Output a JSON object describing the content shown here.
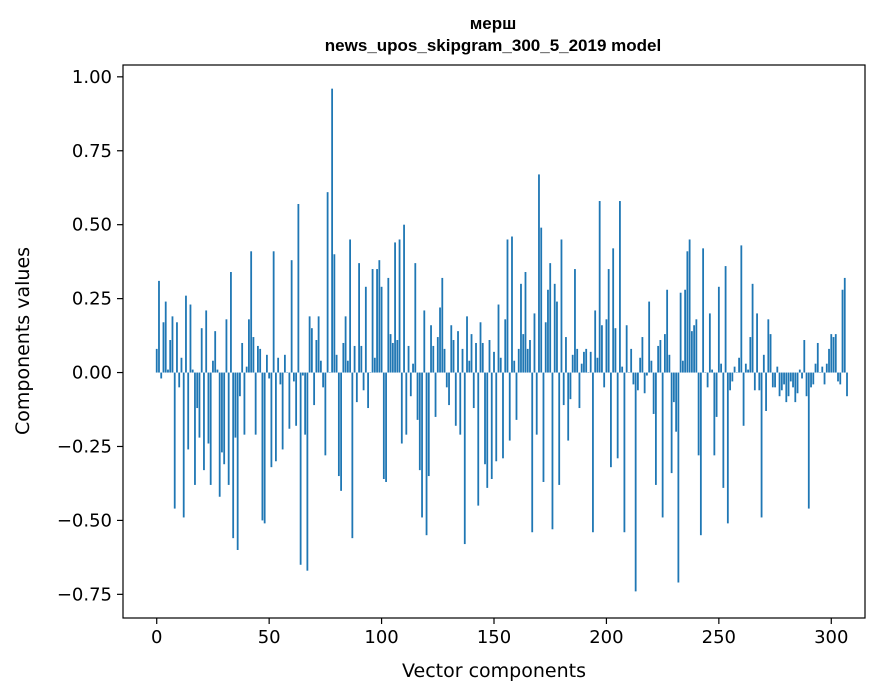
{
  "chart_data": {
    "type": "bar",
    "title": "мерш",
    "subtitle": "news_upos_skipgram_300_5_2019 model",
    "xlabel": "Vector components",
    "ylabel": "Components values",
    "xlim": [
      -15,
      315
    ],
    "ylim": [
      -0.83,
      1.04
    ],
    "xticks": [
      0,
      50,
      100,
      150,
      200,
      250,
      300
    ],
    "xtick_labels": [
      "0",
      "50",
      "100",
      "150",
      "200",
      "250",
      "300"
    ],
    "yticks": [
      -0.75,
      -0.5,
      -0.25,
      0.0,
      0.25,
      0.5,
      0.75,
      1.0
    ],
    "ytick_labels": [
      "−0.75",
      "−0.50",
      "−0.25",
      "0.00",
      "0.25",
      "0.50",
      "0.75",
      "1.00"
    ],
    "grid": false,
    "bar_color": "#1f77b4",
    "values": [
      0.08,
      0.31,
      -0.02,
      0.17,
      0.24,
      0.01,
      0.11,
      0.19,
      -0.46,
      0.17,
      -0.05,
      0.05,
      -0.49,
      0.26,
      -0.26,
      0.23,
      0.01,
      -0.38,
      -0.12,
      -0.22,
      0.15,
      -0.33,
      0.21,
      -0.24,
      -0.38,
      0.04,
      0.14,
      0.01,
      -0.42,
      -0.27,
      -0.31,
      0.18,
      -0.38,
      0.34,
      -0.56,
      -0.22,
      -0.6,
      -0.08,
      0.1,
      -0.21,
      0.02,
      0.18,
      0.41,
      0.12,
      -0.21,
      0.09,
      0.08,
      -0.5,
      -0.51,
      0.06,
      -0.02,
      -0.32,
      0.41,
      -0.3,
      0.05,
      -0.04,
      -0.26,
      0.06,
      0.0,
      -0.19,
      0.38,
      -0.03,
      -0.18,
      0.57,
      -0.65,
      -0.01,
      -0.21,
      -0.67,
      0.19,
      0.15,
      -0.11,
      0.11,
      0.19,
      0.04,
      -0.05,
      -0.28,
      0.61,
      0.0,
      0.96,
      0.4,
      0.06,
      -0.35,
      -0.4,
      0.1,
      0.19,
      0.04,
      0.45,
      -0.56,
      0.09,
      -0.1,
      0.37,
      0.09,
      -0.06,
      0.29,
      -0.12,
      0.0,
      0.35,
      0.05,
      0.35,
      0.38,
      0.29,
      -0.36,
      -0.37,
      0.32,
      0.13,
      0.1,
      0.44,
      0.11,
      0.45,
      -0.24,
      0.5,
      -0.21,
      0.09,
      -0.08,
      0.03,
      0.37,
      -0.16,
      -0.33,
      -0.49,
      0.21,
      -0.55,
      -0.35,
      0.16,
      0.09,
      -0.15,
      0.12,
      0.22,
      0.32,
      0.08,
      -0.05,
      -0.11,
      0.16,
      0.11,
      -0.18,
      0.14,
      -0.21,
      0.08,
      -0.58,
      0.19,
      0.04,
      0.13,
      -0.12,
      0.1,
      -0.45,
      0.17,
      0.1,
      -0.31,
      -0.39,
      0.11,
      -0.36,
      0.07,
      -0.3,
      0.23,
      0.05,
      -0.29,
      0.18,
      0.45,
      -0.23,
      0.46,
      0.04,
      -0.16,
      0.08,
      0.3,
      0.13,
      0.34,
      0.08,
      0.11,
      -0.54,
      0.2,
      -0.21,
      0.67,
      0.49,
      -0.37,
      0.17,
      0.28,
      0.37,
      -0.53,
      0.3,
      0.24,
      -0.38,
      0.45,
      -0.11,
      0.12,
      -0.23,
      -0.09,
      0.06,
      0.35,
      0.08,
      -0.12,
      0.03,
      0.07,
      0.08,
      0.0,
      0.07,
      -0.54,
      0.21,
      0.05,
      0.58,
      0.16,
      -0.05,
      0.18,
      0.35,
      -0.32,
      0.42,
      0.15,
      -0.29,
      0.58,
      0.02,
      -0.54,
      0.16,
      0.0,
      0.08,
      -0.04,
      -0.74,
      -0.06,
      0.05,
      0.12,
      -0.07,
      -0.01,
      0.24,
      0.04,
      -0.14,
      -0.38,
      0.09,
      0.11,
      -0.49,
      0.13,
      0.28,
      0.06,
      -0.34,
      -0.1,
      -0.2,
      -0.71,
      0.27,
      0.04,
      0.28,
      0.41,
      0.45,
      0.14,
      0.16,
      0.18,
      -0.28,
      -0.55,
      0.42,
      0.0,
      -0.05,
      0.2,
      0.01,
      -0.28,
      -0.15,
      0.29,
      0.03,
      -0.39,
      0.36,
      -0.51,
      -0.06,
      -0.03,
      0.02,
      0.0,
      0.05,
      0.43,
      -0.18,
      0.03,
      0.01,
      0.12,
      0.3,
      -0.06,
      0.2,
      -0.06,
      -0.49,
      0.06,
      -0.13,
      0.18,
      0.13,
      -0.05,
      -0.05,
      0.02,
      -0.08,
      -0.06,
      -0.04,
      -0.1,
      -0.08,
      -0.03,
      -0.05,
      -0.1,
      -0.07,
      0.01,
      -0.02,
      0.11,
      -0.08,
      -0.46,
      -0.05,
      -0.04,
      0.03,
      0.1,
      0.0,
      0.02,
      -0.04,
      0.03,
      0.08,
      0.13,
      0.12,
      0.13,
      -0.03,
      -0.04,
      0.28,
      0.32,
      -0.08
    ]
  }
}
